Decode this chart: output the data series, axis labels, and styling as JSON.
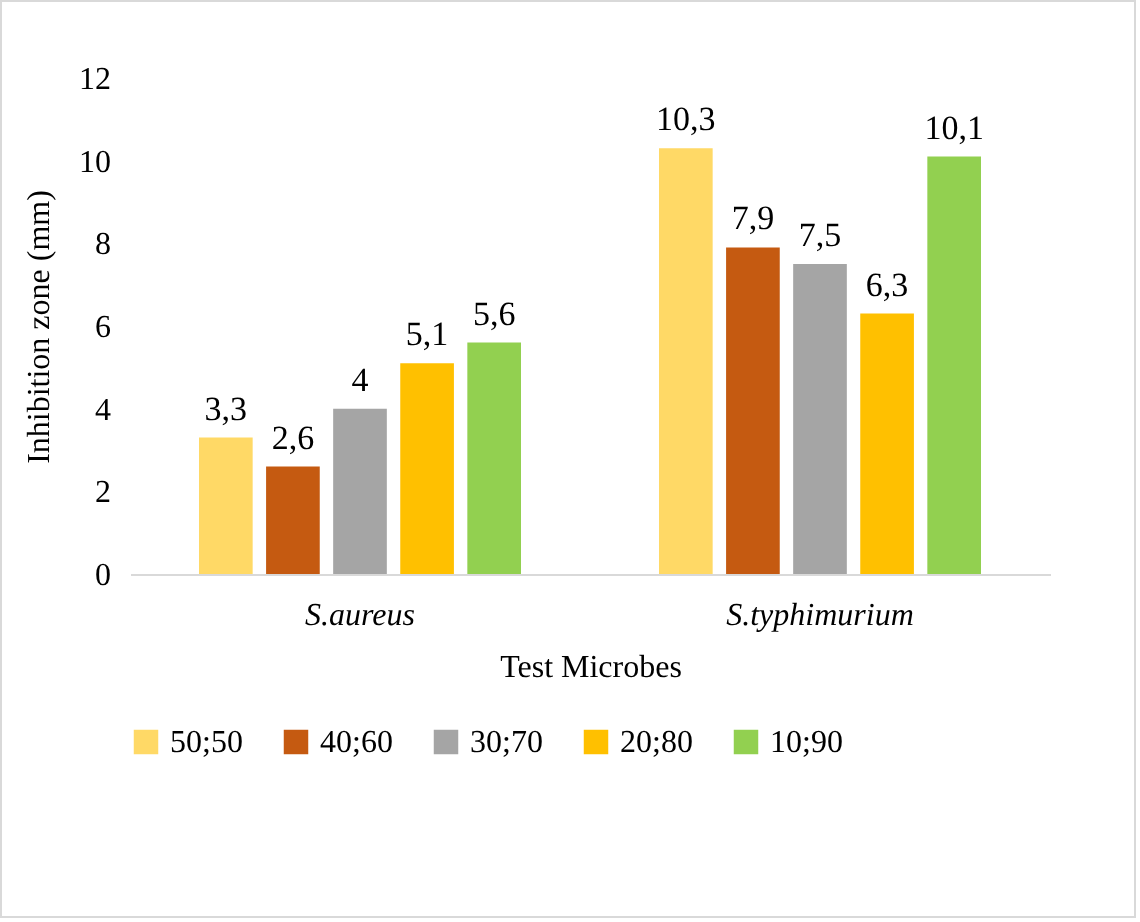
{
  "chart_data": {
    "type": "bar",
    "xlabel": "Test Microbes",
    "ylabel": "Inhibition zone (mm)",
    "categories": [
      "S.aureus",
      "S.typhimurium"
    ],
    "series": [
      {
        "name": "50;50",
        "color": "#ffd966",
        "values": [
          3.3,
          10.3
        ],
        "value_labels": [
          "3,3",
          "10,3"
        ]
      },
      {
        "name": "40;60",
        "color": "#c55a11",
        "values": [
          2.6,
          7.9
        ],
        "value_labels": [
          "2,6",
          "7,9"
        ]
      },
      {
        "name": "30;70",
        "color": "#a5a5a5",
        "values": [
          4,
          7.5
        ],
        "value_labels": [
          "4",
          "7,5"
        ]
      },
      {
        "name": "20;80",
        "color": "#ffc000",
        "values": [
          5.1,
          6.3
        ],
        "value_labels": [
          "5,1",
          "6,3"
        ]
      },
      {
        "name": "10;90",
        "color": "#92d050",
        "values": [
          5.6,
          10.1
        ],
        "value_labels": [
          "5,6",
          "10,1"
        ]
      }
    ],
    "ylim": [
      0,
      12
    ],
    "yticks": [
      0,
      2,
      4,
      6,
      8,
      10,
      12
    ],
    "grid": false,
    "legend": "bottom"
  }
}
